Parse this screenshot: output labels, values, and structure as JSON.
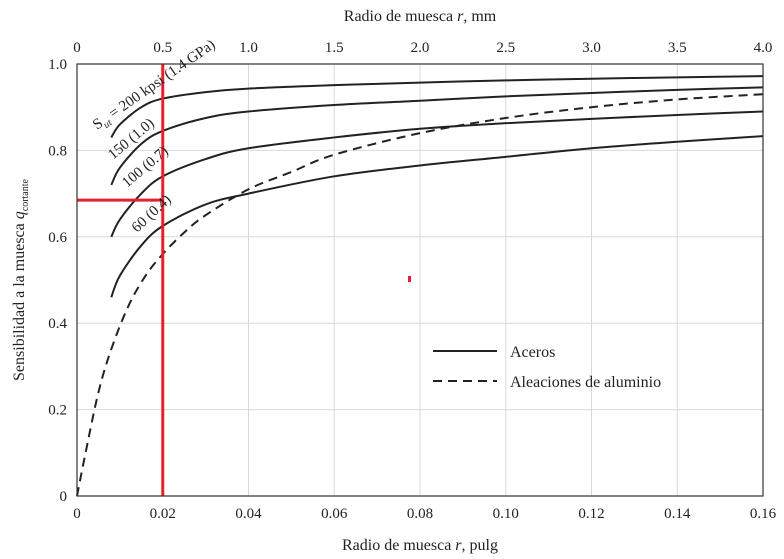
{
  "chart_data": {
    "type": "line",
    "top_axis": {
      "label_prefix": "Radio de muesca ",
      "label_var": "r",
      "label_suffix": ", mm",
      "ticks": [
        "0",
        "0.5",
        "1.0",
        "1.5",
        "2.0",
        "2.5",
        "3.0",
        "3.5",
        "4.0"
      ],
      "range": [
        0,
        4.0
      ]
    },
    "bottom_axis": {
      "label_prefix": "Radio de muesca ",
      "label_var": "r",
      "label_suffix": ", pulg",
      "ticks": [
        "0",
        "0.02",
        "0.04",
        "0.06",
        "0.08",
        "0.10",
        "0.12",
        "0.14",
        "0.16"
      ],
      "range": [
        0,
        0.16
      ]
    },
    "y_axis": {
      "label_main": "Sensibilidad a la muesca ",
      "label_var": "q",
      "label_sub": "cortante",
      "ticks": [
        "0",
        "0.2",
        "0.4",
        "0.6",
        "0.8",
        "1.0"
      ],
      "range": [
        0,
        1.0
      ]
    },
    "grid": true,
    "series": [
      {
        "name": "Aceros",
        "curve_label_a": "S",
        "curve_label_sub": "ut",
        "curve_label_b": " = 200 kpsi  (1.4 GPa)",
        "style": "solid",
        "x": [
          0.008,
          0.01,
          0.015,
          0.02,
          0.03,
          0.04,
          0.06,
          0.08,
          0.1,
          0.12,
          0.14,
          0.16
        ],
        "y": [
          0.83,
          0.86,
          0.9,
          0.92,
          0.935,
          0.943,
          0.951,
          0.957,
          0.962,
          0.966,
          0.969,
          0.972
        ]
      },
      {
        "name": "Aceros",
        "curve_label": "150  (1.0)",
        "style": "solid",
        "x": [
          0.008,
          0.01,
          0.015,
          0.02,
          0.03,
          0.04,
          0.06,
          0.08,
          0.1,
          0.12,
          0.14,
          0.16
        ],
        "y": [
          0.72,
          0.76,
          0.815,
          0.845,
          0.875,
          0.89,
          0.905,
          0.915,
          0.925,
          0.933,
          0.94,
          0.946
        ]
      },
      {
        "name": "Aceros",
        "curve_label": "100  (0.7)",
        "style": "solid",
        "x": [
          0.008,
          0.01,
          0.015,
          0.02,
          0.03,
          0.04,
          0.06,
          0.08,
          0.1,
          0.12,
          0.14,
          0.16
        ],
        "y": [
          0.6,
          0.64,
          0.7,
          0.74,
          0.78,
          0.805,
          0.83,
          0.85,
          0.863,
          0.873,
          0.882,
          0.89
        ]
      },
      {
        "name": "Aceros",
        "curve_label": "60  (0.4)",
        "style": "solid",
        "x": [
          0.008,
          0.01,
          0.015,
          0.02,
          0.03,
          0.04,
          0.06,
          0.08,
          0.1,
          0.12,
          0.14,
          0.16
        ],
        "y": [
          0.46,
          0.51,
          0.58,
          0.625,
          0.675,
          0.7,
          0.74,
          0.765,
          0.785,
          0.805,
          0.82,
          0.833
        ]
      },
      {
        "name": "Aleaciones de aluminio",
        "style": "dashed",
        "x": [
          0.0,
          0.002,
          0.005,
          0.008,
          0.012,
          0.016,
          0.02,
          0.025,
          0.03,
          0.04,
          0.05,
          0.06,
          0.08,
          0.1,
          0.12,
          0.14,
          0.16
        ],
        "y": [
          0.0,
          0.1,
          0.24,
          0.34,
          0.44,
          0.51,
          0.56,
          0.61,
          0.65,
          0.71,
          0.75,
          0.79,
          0.84,
          0.875,
          0.9,
          0.918,
          0.93
        ]
      }
    ],
    "legend": {
      "placement": "bottom-right",
      "entries": [
        {
          "label": "Aceros",
          "style": "solid"
        },
        {
          "label": "Aleaciones de aluminio",
          "style": "dashed"
        }
      ]
    },
    "annotations": {
      "color": "#e8202a",
      "vertical_line_x": 0.02,
      "horizontal_line_y": 0.685
    }
  }
}
